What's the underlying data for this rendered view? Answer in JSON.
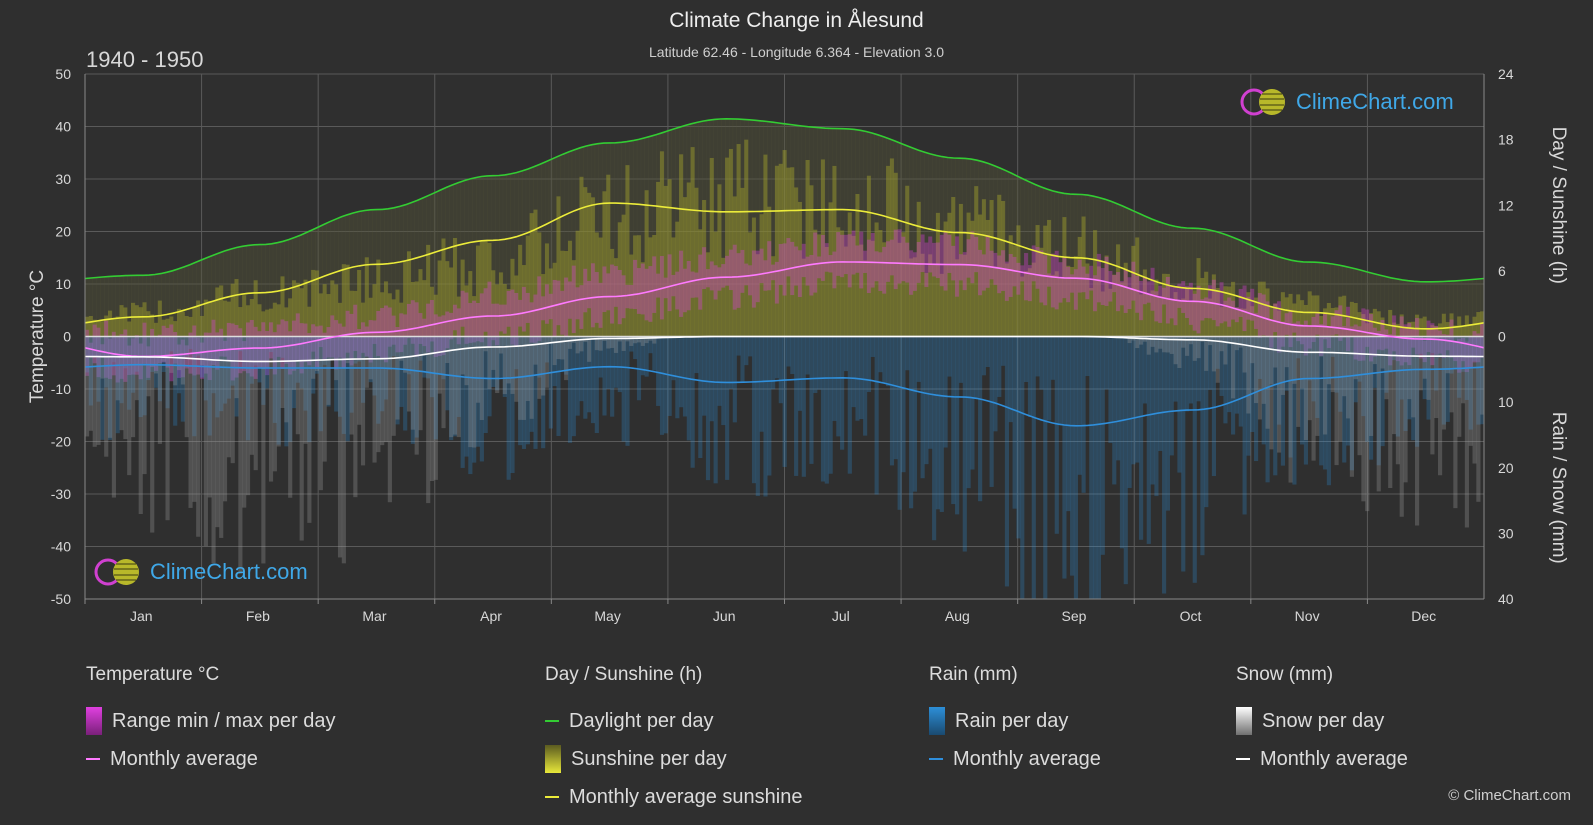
{
  "header": {
    "title": "Climate Change in Ålesund",
    "subtitle": "Latitude 62.46 - Longitude 6.364 - Elevation 3.0",
    "period": "1940 - 1950"
  },
  "logo_text": "ClimeChart.com",
  "copyright": "© ClimeChart.com",
  "colors": {
    "background": "#2f2f2f",
    "temp_range": "#e040e0",
    "temp_avg": "#ff7aff",
    "daylight": "#33cc33",
    "sunshine_fill": "#c8c832",
    "sunshine_avg": "#ecec3a",
    "rain": "#2d8fd8",
    "rain_avg": "#2f8fdc",
    "snow": "#c8c8c8",
    "snow_avg": "#ffffff"
  },
  "legend": {
    "temperature": {
      "title": "Temperature °C",
      "range": "Range min / max per day",
      "avg": "Monthly average"
    },
    "sun": {
      "title": "Day / Sunshine (h)",
      "daylight": "Daylight per day",
      "sunshine": "Sunshine per day",
      "avg": "Monthly average sunshine"
    },
    "rain": {
      "title": "Rain (mm)",
      "per_day": "Rain per day",
      "avg": "Monthly average"
    },
    "snow": {
      "title": "Snow (mm)",
      "per_day": "Snow per day",
      "avg": "Monthly average"
    }
  },
  "chart_data": {
    "type": "line",
    "categories": [
      "Jan",
      "Feb",
      "Mar",
      "Apr",
      "May",
      "Jun",
      "Jul",
      "Aug",
      "Sep",
      "Oct",
      "Nov",
      "Dec"
    ],
    "y_left": {
      "label": "Temperature °C",
      "range": [
        -50,
        50
      ],
      "ticks": [
        50,
        40,
        30,
        20,
        10,
        0,
        -10,
        -20,
        -30,
        -40,
        -50
      ]
    },
    "y_right_top": {
      "label": "Day / Sunshine (h)",
      "range": [
        0,
        24
      ],
      "ticks": [
        24,
        18,
        12,
        6,
        0
      ]
    },
    "y_right_bottom": {
      "label": "Rain / Snow (mm)",
      "range": [
        0,
        40
      ],
      "ticks": [
        0,
        10,
        20,
        30,
        40
      ]
    },
    "grid": true,
    "series": [
      {
        "name": "Daylight per day",
        "axis": "sun_h",
        "values": [
          5.6,
          8.4,
          11.6,
          14.7,
          17.7,
          19.9,
          19.0,
          16.3,
          13.0,
          9.9,
          6.8,
          5.0
        ]
      },
      {
        "name": "Sunshine per day",
        "axis": "sun_h",
        "values": [
          2.2,
          3.8,
          5.2,
          6.8,
          11.2,
          12.7,
          12.7,
          10.0,
          7.8,
          5.0,
          3.0,
          1.4
        ]
      },
      {
        "name": "Monthly average sunshine",
        "axis": "sun_h",
        "values": [
          1.8,
          4.0,
          6.6,
          8.8,
          12.2,
          11.4,
          11.6,
          9.5,
          7.2,
          4.4,
          2.2,
          0.7
        ]
      },
      {
        "name": "Monthly average",
        "axis": "temp_c",
        "values": [
          -3.8,
          -2.2,
          0.8,
          3.9,
          7.6,
          11.3,
          14.2,
          13.7,
          11.1,
          6.7,
          2.0,
          -0.5
        ]
      },
      {
        "name": "Range max",
        "axis": "temp_c",
        "values": [
          0.5,
          1.5,
          4.0,
          8.0,
          12.0,
          15.0,
          18.0,
          18.0,
          14.0,
          9.5,
          4.5,
          1.5
        ]
      },
      {
        "name": "Range min",
        "axis": "temp_c",
        "values": [
          -7.0,
          -6.0,
          -3.0,
          0.0,
          3.5,
          7.5,
          10.5,
          10.0,
          7.5,
          3.0,
          -1.5,
          -4.0
        ]
      },
      {
        "name": "Rain monthly average",
        "axis": "precip_mm",
        "values": [
          4.3,
          4.8,
          4.8,
          6.4,
          4.6,
          7.0,
          6.3,
          9.2,
          13.6,
          11.2,
          6.4,
          5.0
        ]
      },
      {
        "name": "Snow monthly average",
        "axis": "precip_mm",
        "values": [
          3.1,
          3.8,
          3.4,
          1.6,
          0.3,
          0.0,
          0.0,
          0.0,
          0.0,
          0.5,
          2.4,
          3.0
        ]
      }
    ]
  }
}
